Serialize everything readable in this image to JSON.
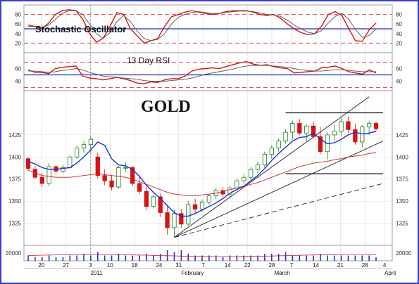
{
  "chart_data": [
    {
      "type": "line",
      "title": "Stochastic Oscillator",
      "ylim": [
        0,
        100
      ],
      "y_ticks": [
        20,
        40,
        60,
        80
      ],
      "reference_lines": {
        "dashed_red": [
          20,
          80
        ],
        "solid_blue": 50
      },
      "series": [
        {
          "color": "#dd1111",
          "values": [
            58,
            55,
            50,
            62,
            80,
            88,
            90,
            88,
            70,
            40,
            22,
            30,
            55,
            84,
            80,
            50,
            35,
            20,
            25,
            30,
            55,
            75,
            80,
            85,
            88,
            85,
            82,
            80,
            82,
            86,
            88,
            88,
            88,
            85,
            80,
            78,
            80,
            72,
            60,
            50,
            42,
            38,
            40,
            55,
            80,
            86,
            78,
            50,
            25,
            24,
            48,
            62
          ]
        },
        {
          "color": "#555555",
          "values": [
            55,
            55,
            52,
            58,
            70,
            82,
            88,
            88,
            80,
            60,
            40,
            30,
            42,
            65,
            78,
            65,
            45,
            30,
            25,
            28,
            40,
            60,
            74,
            80,
            84,
            86,
            84,
            82,
            82,
            84,
            86,
            87,
            87,
            86,
            83,
            80,
            79,
            76,
            68,
            58,
            50,
            43,
            40,
            46,
            62,
            76,
            82,
            70,
            48,
            32,
            36,
            50
          ]
        }
      ]
    },
    {
      "type": "line",
      "title": "13 Day RSI",
      "ylim": [
        25,
        85
      ],
      "y_ticks": [
        40,
        60
      ],
      "reference_lines": {
        "dashed_red": [
          30,
          70
        ],
        "solid_blue": 50
      },
      "series": [
        {
          "color": "#dd1111",
          "values": [
            58,
            54,
            54,
            52,
            60,
            62,
            63,
            64,
            48,
            45,
            44,
            42,
            44,
            46,
            44,
            41,
            37,
            36,
            39,
            38,
            42,
            44,
            44,
            48,
            56,
            59,
            60,
            61,
            60,
            63,
            66,
            69,
            71,
            67,
            65,
            66,
            63,
            61,
            60,
            53,
            54,
            55,
            56,
            61,
            62,
            64,
            60,
            55,
            53,
            51,
            58,
            53
          ]
        },
        {
          "color": "#555555",
          "values": [
            56,
            56,
            55,
            54,
            55,
            57,
            58,
            60,
            58,
            54,
            51,
            48,
            47,
            46,
            45,
            44,
            43,
            41,
            40,
            40,
            40,
            41,
            42,
            43,
            45,
            48,
            51,
            53,
            55,
            57,
            59,
            62,
            64,
            65,
            65,
            65,
            64,
            63,
            62,
            60,
            58,
            57,
            56,
            56,
            57,
            58,
            58,
            57,
            56,
            55,
            55,
            55
          ]
        }
      ]
    },
    {
      "type": "line",
      "title": "GOLD",
      "ylim": [
        1300,
        1475
      ],
      "y_ticks": [
        1325,
        1350,
        1375,
        1400,
        1425
      ],
      "ohlc": [
        [
          1398,
          1400,
          1385,
          1387
        ],
        [
          1386,
          1390,
          1375,
          1377
        ],
        [
          1377,
          1382,
          1366,
          1370
        ],
        [
          1370,
          1393,
          1367,
          1389
        ],
        [
          1389,
          1391,
          1380,
          1384
        ],
        [
          1384,
          1391,
          1381,
          1388
        ],
        [
          1388,
          1402,
          1387,
          1400
        ],
        [
          1400,
          1413,
          1398,
          1410
        ],
        [
          1410,
          1418,
          1405,
          1414
        ],
        [
          1414,
          1423,
          1405,
          1420
        ],
        [
          1400,
          1405,
          1376,
          1379
        ],
        [
          1379,
          1386,
          1368,
          1373
        ],
        [
          1373,
          1380,
          1362,
          1366
        ],
        [
          1366,
          1390,
          1364,
          1388
        ],
        [
          1388,
          1394,
          1383,
          1388
        ],
        [
          1388,
          1390,
          1367,
          1370
        ],
        [
          1370,
          1378,
          1358,
          1361
        ],
        [
          1361,
          1366,
          1340,
          1344
        ],
        [
          1344,
          1357,
          1342,
          1355
        ],
        [
          1355,
          1359,
          1332,
          1337
        ],
        [
          1337,
          1346,
          1312,
          1320
        ],
        [
          1320,
          1340,
          1309,
          1336
        ],
        [
          1336,
          1341,
          1320,
          1324
        ],
        [
          1324,
          1350,
          1322,
          1346
        ],
        [
          1346,
          1353,
          1336,
          1341
        ],
        [
          1341,
          1352,
          1338,
          1349
        ],
        [
          1349,
          1358,
          1346,
          1356
        ],
        [
          1356,
          1365,
          1352,
          1362
        ],
        [
          1362,
          1366,
          1355,
          1358
        ],
        [
          1358,
          1367,
          1353,
          1365
        ],
        [
          1365,
          1376,
          1362,
          1373
        ],
        [
          1373,
          1381,
          1369,
          1377
        ],
        [
          1377,
          1389,
          1374,
          1386
        ],
        [
          1386,
          1395,
          1382,
          1391
        ],
        [
          1391,
          1406,
          1388,
          1403
        ],
        [
          1403,
          1413,
          1398,
          1410
        ],
        [
          1410,
          1421,
          1406,
          1418
        ],
        [
          1418,
          1431,
          1415,
          1428
        ],
        [
          1428,
          1441,
          1420,
          1438
        ],
        [
          1438,
          1443,
          1425,
          1427
        ],
        [
          1427,
          1437,
          1418,
          1435
        ],
        [
          1435,
          1440,
          1421,
          1423
        ],
        [
          1423,
          1434,
          1403,
          1406
        ],
        [
          1406,
          1428,
          1397,
          1425
        ],
        [
          1425,
          1437,
          1418,
          1429
        ],
        [
          1429,
          1444,
          1424,
          1440
        ],
        [
          1440,
          1446,
          1427,
          1431
        ],
        [
          1431,
          1438,
          1414,
          1417
        ],
        [
          1417,
          1436,
          1411,
          1434
        ],
        [
          1434,
          1441,
          1425,
          1438
        ],
        [
          1438,
          1440,
          1429,
          1432
        ]
      ],
      "series": [
        {
          "color": "#1a2fe0",
          "values": [
            1395,
            1392,
            1388,
            1386,
            1386,
            1387,
            1388,
            1393,
            1400,
            1408,
            1417,
            1413,
            1398,
            1391,
            1390,
            1386,
            1378,
            1368,
            1360,
            1353,
            1345,
            1337,
            1333,
            1333,
            1336,
            1340,
            1344,
            1348,
            1353,
            1359,
            1363,
            1367,
            1373,
            1379,
            1387,
            1396,
            1404,
            1411,
            1418,
            1422,
            1423,
            1427,
            1420,
            1415,
            1416,
            1420,
            1425,
            1428,
            1426,
            1427,
            1429
          ]
        },
        {
          "color": "#cc2222",
          "values": [
            1385,
            1382,
            1379,
            1378,
            1377,
            1377,
            1377,
            1378,
            1379,
            1380,
            1381,
            1380,
            1379,
            1378,
            1377,
            1375,
            1372,
            1369,
            1366,
            1363,
            1360,
            1358,
            1357,
            1356,
            1356,
            1357,
            1358,
            1359,
            1361,
            1363,
            1365,
            1367,
            1369,
            1371,
            1374,
            1377,
            1380,
            1383,
            1386,
            1389,
            1391,
            1393,
            1394,
            1395,
            1397,
            1398,
            1400,
            1401,
            1402,
            1404,
            1405
          ]
        }
      ],
      "volume": [
        3,
        2,
        2,
        3,
        2,
        2,
        3,
        3,
        4,
        3,
        5,
        3,
        3,
        4,
        3,
        3,
        3,
        4,
        3,
        4,
        6,
        5,
        6,
        4,
        3,
        3,
        3,
        3,
        2,
        3,
        3,
        3,
        3,
        3,
        4,
        4,
        4,
        5,
        3,
        3,
        3,
        3,
        4,
        3,
        3,
        3,
        3,
        3,
        3,
        3,
        2
      ],
      "volume_tick": "20000",
      "x_day_labels": [
        "20",
        "27",
        "3",
        "10",
        "18",
        "24",
        "31",
        "7",
        "14",
        "22",
        "28",
        "7",
        "14",
        "21",
        "28",
        "4"
      ],
      "month_labels": [
        "2011",
        "February",
        "March",
        "April"
      ]
    }
  ]
}
